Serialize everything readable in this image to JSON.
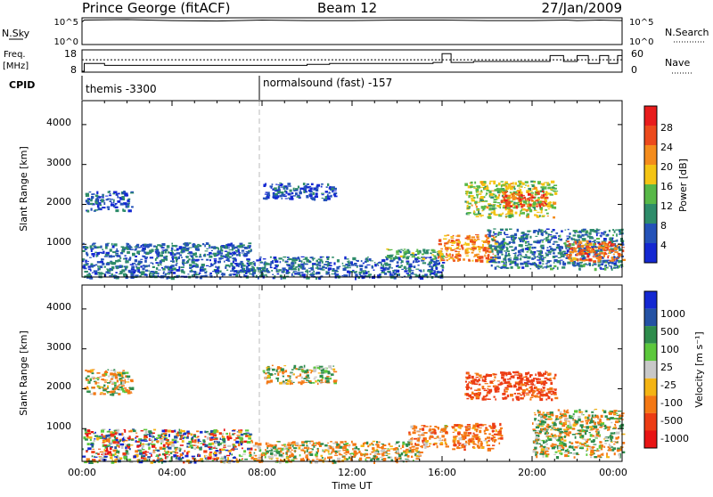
{
  "header": {
    "site": "Prince George (fitACF)",
    "beam": "Beam 12",
    "date": "27/Jan/2009"
  },
  "top_panels": {
    "nsky": {
      "left_label": "N.Sky",
      "right_label": "N.Search",
      "y_ticks_left": [
        "10^5",
        "10^0"
      ],
      "y_ticks_right": [
        "10^5",
        "10^0"
      ]
    },
    "freq": {
      "left_label_line1": "Freq.",
      "left_label_line2": "[MHz]",
      "right_label": "Nave",
      "y_ticks_left": [
        "18",
        "8"
      ],
      "y_ticks_right": [
        "60",
        "0"
      ]
    },
    "cpid": {
      "label": "CPID",
      "segments": [
        {
          "label": "themis -3300",
          "start_hour": 0
        },
        {
          "label": "normalsound (fast) -157",
          "start_hour": 8
        }
      ]
    }
  },
  "time_axis": {
    "label": "Time UT",
    "ticks": [
      "00:00",
      "04:00",
      "08:00",
      "12:00",
      "16:00",
      "20:00",
      "00:00"
    ]
  },
  "power_panel": {
    "ylabel": "Slant Range [km]",
    "y_ticks": [
      "1000",
      "2000",
      "3000",
      "4000"
    ],
    "colorbar_label": "Power [dB]",
    "colorbar_ticks": [
      "4",
      "8",
      "12",
      "16",
      "20",
      "24",
      "28"
    ],
    "colors": [
      "#1428d2",
      "#2452b8",
      "#2e8c6a",
      "#58b848",
      "#f4c414",
      "#f48c1c",
      "#ec4a1c",
      "#e81c1c"
    ]
  },
  "velocity_panel": {
    "ylabel": "Slant Range [km]",
    "y_ticks": [
      "1000",
      "2000",
      "3000",
      "4000"
    ],
    "colorbar_label": "Velocity [m s⁻¹]",
    "colorbar_ticks": [
      "1000",
      "500",
      "100",
      "25",
      "-25",
      "-100",
      "-500",
      "-1000"
    ],
    "colors": [
      "#1428d2",
      "#2452a4",
      "#2e8c4c",
      "#5cc83c",
      "#c8c8c8",
      "#f4b414",
      "#f47814",
      "#ec3c14",
      "#e81414"
    ]
  },
  "chart_data": [
    {
      "type": "line",
      "title": "Prince George (fitACF) Beam 12 27/Jan/2009",
      "series": [
        {
          "name": "N.Sky",
          "x": [
            0,
            0.1,
            2,
            4,
            6,
            8,
            10,
            12,
            14,
            16,
            18,
            20,
            21.5,
            22,
            23,
            24
          ],
          "values": [
            4.5,
            4.9,
            5.0,
            4.8,
            4.7,
            4.9,
            4.8,
            4.8,
            4.9,
            4.9,
            4.8,
            4.8,
            4.9,
            4.8,
            4.9,
            4.8
          ]
        },
        {
          "name": "N.Search",
          "x": [
            0,
            4,
            8,
            12,
            16,
            20,
            24
          ],
          "values": [
            0,
            0,
            0,
            0,
            0,
            0,
            0
          ]
        }
      ]
    },
    {
      "type": "line",
      "series": [
        {
          "name": "Freq.",
          "x": [
            0,
            0.1,
            1,
            8,
            10,
            11,
            12,
            14,
            15.6,
            16.0,
            16.4,
            17.4,
            20.4,
            20.8,
            21.4,
            22.0,
            22.5,
            23.0,
            23.4,
            23.8,
            24
          ],
          "values": [
            8,
            12,
            11,
            11,
            11.5,
            12,
            12,
            12,
            12.5,
            17,
            12.5,
            13,
            13,
            16,
            13,
            16,
            12,
            16,
            12,
            16,
            13
          ]
        },
        {
          "name": "Nave",
          "x": [
            0,
            24
          ],
          "values": [
            35,
            35
          ]
        }
      ]
    },
    {
      "type": "heatmap",
      "name": "Power",
      "xlabel": "Time UT",
      "ylabel": "Slant Range [km]",
      "x_range_hours": [
        0,
        24
      ],
      "y_range_km": [
        180,
        4600
      ],
      "z_label": "Power [dB]",
      "z_range": [
        0,
        30
      ],
      "regions": [
        {
          "t0": 0.0,
          "t1": 7.5,
          "r0": 180,
          "r1": 1050,
          "z": 7
        },
        {
          "t0": 7.5,
          "t1": 16.0,
          "r0": 180,
          "r1": 700,
          "z": 7
        },
        {
          "t0": 13.5,
          "t1": 16.0,
          "r0": 650,
          "r1": 900,
          "z": 12
        },
        {
          "t0": 0.1,
          "t1": 2.2,
          "r0": 1850,
          "r1": 2350,
          "z": 6
        },
        {
          "t0": 8.0,
          "t1": 11.2,
          "r0": 2150,
          "r1": 2550,
          "z": 5
        },
        {
          "t0": 17.0,
          "t1": 21.0,
          "r0": 1700,
          "r1": 2600,
          "z": 16
        },
        {
          "t0": 18.6,
          "t1": 20.6,
          "r0": 1950,
          "r1": 2350,
          "z": 26
        },
        {
          "t0": 15.8,
          "t1": 18.4,
          "r0": 600,
          "r1": 1250,
          "z": 22
        },
        {
          "t0": 18.0,
          "t1": 24.0,
          "r0": 400,
          "r1": 1400,
          "z": 8
        },
        {
          "t0": 21.5,
          "t1": 24.0,
          "r0": 600,
          "r1": 1100,
          "z": 24
        }
      ]
    },
    {
      "type": "heatmap",
      "name": "Velocity",
      "xlabel": "Time UT",
      "ylabel": "Slant Range [km]",
      "x_range_hours": [
        0,
        24
      ],
      "y_range_km": [
        180,
        4600
      ],
      "z_label": "Velocity [m s⁻¹]",
      "z_range": [
        -1000,
        1000
      ],
      "regions": [
        {
          "t0": 0.0,
          "t1": 7.5,
          "r0": 180,
          "r1": 1000,
          "z": 0,
          "note": "mixed"
        },
        {
          "t0": 7.5,
          "t1": 15.0,
          "r0": 180,
          "r1": 700,
          "z": -60
        },
        {
          "t0": 14.5,
          "t1": 16.2,
          "r0": 550,
          "r1": 1100,
          "z": -150
        },
        {
          "t0": 0.1,
          "t1": 2.2,
          "r0": 1850,
          "r1": 2500,
          "z": 0
        },
        {
          "t0": 8.0,
          "t1": 11.2,
          "r0": 2150,
          "r1": 2600,
          "z": 0
        },
        {
          "t0": 17.0,
          "t1": 21.0,
          "r0": 1750,
          "r1": 2450,
          "z": -400
        },
        {
          "t0": 16.4,
          "t1": 18.6,
          "r0": 500,
          "r1": 1150,
          "z": -200
        },
        {
          "t0": 20.0,
          "t1": 24.0,
          "r0": 300,
          "r1": 1500,
          "z": 0
        }
      ]
    }
  ]
}
